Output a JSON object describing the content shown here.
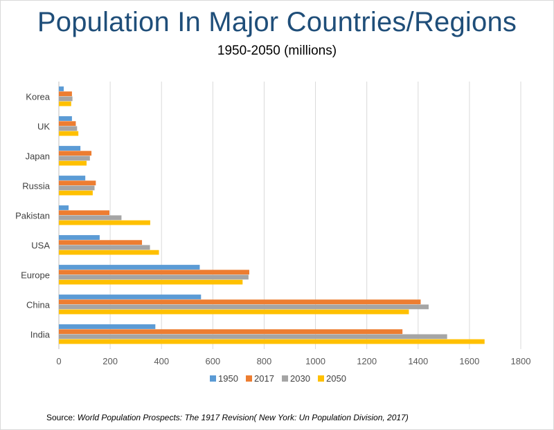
{
  "chart_data": {
    "type": "bar",
    "orientation": "horizontal",
    "title": "Population In Major Countries/Regions",
    "subtitle": "1950-2050 (millions)",
    "categories": [
      "India",
      "China",
      "Europe",
      "USA",
      "Pakistan",
      "Russia",
      "Japan",
      "UK",
      "Korea"
    ],
    "series": [
      {
        "name": "1950",
        "color": "#5b9bd5",
        "values": [
          376,
          554,
          549,
          159,
          38,
          103,
          84,
          51,
          19
        ]
      },
      {
        "name": "2017",
        "color": "#ed7d31",
        "values": [
          1339,
          1410,
          742,
          324,
          197,
          144,
          127,
          66,
          51
        ]
      },
      {
        "name": "2030",
        "color": "#a5a5a5",
        "values": [
          1513,
          1441,
          739,
          355,
          244,
          139,
          121,
          71,
          53
        ]
      },
      {
        "name": "2050",
        "color": "#ffc000",
        "values": [
          1659,
          1364,
          716,
          390,
          356,
          132,
          108,
          76,
          48
        ]
      }
    ],
    "xlim": [
      0,
      1800
    ],
    "xticks": [
      "0",
      "200",
      "400",
      "600",
      "800",
      "1000",
      "1200",
      "1400",
      "1600",
      "1800"
    ],
    "grid": true,
    "legend_position": "bottom",
    "source_prefix": "Source: ",
    "source_text": "World Population Prospects: The 1917 Revision( New York: Un Population Division, 2017)"
  }
}
